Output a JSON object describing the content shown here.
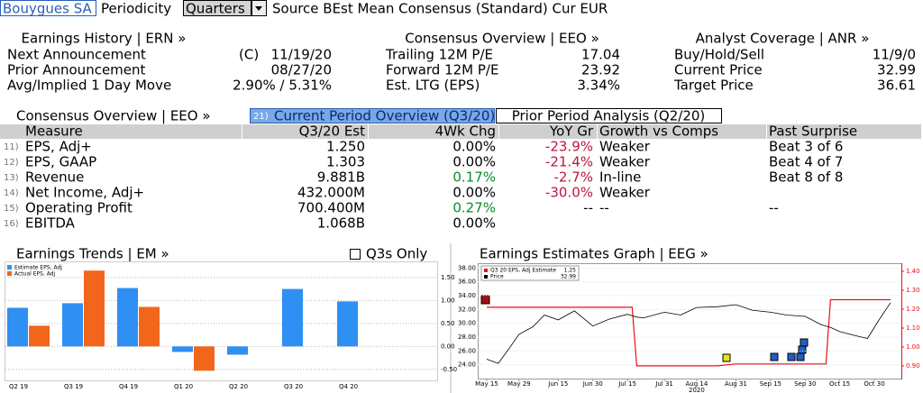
{
  "header": {
    "company": "Bouygues SA",
    "periodicity_label": "Periodicity",
    "periodicity": "Quarters",
    "source": "Source BEst Mean Consensus (Standard) Cur EUR"
  },
  "summary": [
    {
      "title": "Earnings History | ERN »",
      "rows": [
        {
          "label": "Next Announcement",
          "note": "(C)",
          "value": "11/19/20"
        },
        {
          "label": "Prior Announcement",
          "value": "08/27/20"
        },
        {
          "label": "Avg/Implied 1 Day Move",
          "value": "2.90% / 5.31%"
        }
      ]
    },
    {
      "title": "Consensus Overview | EEO »",
      "rows": [
        {
          "label": "Trailing 12M P/E",
          "value": "17.04"
        },
        {
          "label": "Forward 12M P/E",
          "value": "23.92"
        },
        {
          "label": "Est. LTG (EPS)",
          "value": "3.34%"
        }
      ]
    },
    {
      "title": "Analyst Coverage | ANR »",
      "rows": [
        {
          "label": "Buy/Hold/Sell",
          "value": "11/9/0"
        },
        {
          "label": "Current Price",
          "value": "32.99"
        },
        {
          "label": "Target Price",
          "value": "36.61"
        }
      ]
    }
  ],
  "consensus": {
    "title": "Consensus Overview | EEO »",
    "tabs": [
      {
        "number": "21)",
        "label": "Current Period Overview (Q3/20)"
      },
      {
        "label": "Prior Period Analysis (Q2/20)"
      }
    ],
    "columns": [
      "Measure",
      "Q3/20 Est",
      "4Wk Chg",
      "YoY Gr",
      "Growth vs Comps",
      "Past Surprise"
    ],
    "rows": [
      {
        "number": "11)",
        "cells": [
          "EPS, Adj+",
          "1.250",
          "0.00%",
          "-23.9%",
          "Weaker",
          "Beat 3 of 6"
        ]
      },
      {
        "number": "12)",
        "cells": [
          "EPS, GAAP",
          "1.303",
          "0.00%",
          "-21.4%",
          "Weaker",
          "Beat 4 of 7"
        ]
      },
      {
        "number": "13)",
        "cells": [
          "Revenue",
          "9.881B",
          "0.17%",
          "-2.7%",
          "In-line",
          "Beat 8 of 8"
        ]
      },
      {
        "number": "14)",
        "cells": [
          "Net Income, Adj+",
          "432.000M",
          "0.00%",
          "-30.0%",
          "Weaker",
          null
        ]
      },
      {
        "number": "15)",
        "cells": [
          "Operating Profit",
          "700.400M",
          "0.27%",
          "--",
          "--",
          "--"
        ]
      },
      {
        "number": "16)",
        "cells": [
          "EBITDA",
          "1.068B",
          "0.00%",
          null,
          null,
          null
        ]
      }
    ]
  },
  "chart_data": [
    {
      "type": "bar",
      "title": "Earnings Trends | EM »",
      "option_label": "Q3s Only",
      "categories": [
        "Q2 19",
        "Q3 19",
        "Q4 19",
        "Q1 20",
        "Q2 20",
        "Q3 20",
        "Q4 20"
      ],
      "series": [
        {
          "name": "Estimate EPS, Adj",
          "color": "#2f8ff2",
          "values": [
            0.84,
            0.94,
            1.27,
            -0.12,
            -0.18,
            1.25,
            0.98
          ]
        },
        {
          "name": "Actual EPS, Adj",
          "color": "#f2661b",
          "values": [
            0.45,
            1.65,
            0.86,
            -0.53,
            null,
            null,
            null
          ]
        }
      ],
      "ylim": [
        -0.7,
        1.85
      ],
      "yticks": [
        {
          "value": -0.5,
          "label": "-0.50"
        },
        {
          "value": 0,
          "label": "0.00"
        },
        {
          "value": 0.5,
          "label": "0.50"
        },
        {
          "value": 1,
          "label": "1.00"
        },
        {
          "value": 1.5,
          "label": "1.50"
        }
      ],
      "grid": true
    },
    {
      "type": "line",
      "title": "Earnings Estimates Graph | EEG »",
      "year_label": "2020",
      "x": [
        0,
        5,
        10,
        14,
        20,
        25,
        31,
        38,
        46,
        53,
        61,
        63,
        65,
        68,
        77,
        84,
        91,
        100,
        108,
        115,
        123,
        130,
        138,
        145,
        147,
        149,
        153,
        160,
        165,
        170,
        175
      ],
      "xlim": [
        -3.9,
        179.7
      ],
      "xticks": [
        {
          "value": 0,
          "label": "May 15"
        },
        {
          "value": 14,
          "label": "May 29"
        },
        {
          "value": 31,
          "label": "Jun 15"
        },
        {
          "value": 46,
          "label": "Jun 30"
        },
        {
          "value": 61,
          "label": "Jul 15"
        },
        {
          "value": 77,
          "label": "Jul 31"
        },
        {
          "value": 91,
          "label": "Aug 14"
        },
        {
          "value": 108,
          "label": "Aug 31"
        },
        {
          "value": 123,
          "label": "Sep 15"
        },
        {
          "value": 138,
          "label": "Sep 30"
        },
        {
          "value": 153,
          "label": "Oct 15"
        },
        {
          "value": 168,
          "label": "Oct 30"
        }
      ],
      "ylim": [
        22,
        38.7
      ],
      "yticks": [
        {
          "value": 24,
          "label": "24.00"
        },
        {
          "value": 26,
          "label": "26.00"
        },
        {
          "value": 28,
          "label": "28.00"
        },
        {
          "value": 30,
          "label": "30.00"
        },
        {
          "value": 32,
          "label": "32.00"
        },
        {
          "value": 34,
          "label": "34.00"
        },
        {
          "value": 36,
          "label": "36.00"
        },
        {
          "value": 38,
          "label": "38.00"
        }
      ],
      "y2lim": [
        0.833,
        1.443
      ],
      "y2ticks": [
        {
          "value": 0.9,
          "label": "0.90"
        },
        {
          "value": 1,
          "label": "1.00"
        },
        {
          "value": 1.1,
          "label": "1.10"
        },
        {
          "value": 1.2,
          "label": "1.20"
        },
        {
          "value": 1.3,
          "label": "1.30"
        },
        {
          "value": 1.4,
          "label": "1.40"
        }
      ],
      "grid": true,
      "series": [
        {
          "name": "Q3 20 EPS, Adj Estimate",
          "legend_value": "1.25",
          "color": "#e8101a",
          "axis": "y2",
          "values": [
            1.21,
            1.21,
            1.21,
            1.21,
            1.21,
            1.21,
            1.21,
            1.21,
            1.21,
            1.21,
            1.21,
            1.21,
            0.9,
            0.9,
            0.9,
            0.9,
            0.9,
            0.9,
            0.91,
            0.91,
            0.91,
            0.91,
            0.91,
            0.91,
            0.91,
            1.25,
            1.25,
            1.25,
            1.25,
            1.25,
            1.25
          ]
        },
        {
          "name": "Price",
          "legend_value": "32.99",
          "color": "#000000",
          "values": [
            24.8,
            24.2,
            26.5,
            28.4,
            29.5,
            31.2,
            30.5,
            31.8,
            29.6,
            30.6,
            31.3,
            31.1,
            30.9,
            30.8,
            31.6,
            31.2,
            32.3,
            32.4,
            32.7,
            31.9,
            31.6,
            31.2,
            31.0,
            29.8,
            29.6,
            29.4,
            28.8,
            28.2,
            27.8,
            30.5,
            32.99
          ]
        }
      ]
    }
  ]
}
